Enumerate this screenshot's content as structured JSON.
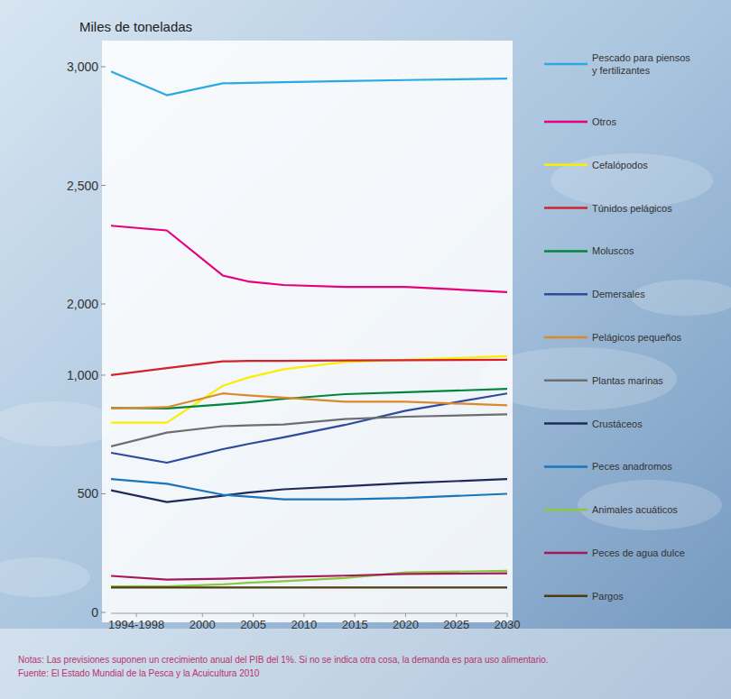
{
  "chart_data": {
    "type": "line",
    "y_label": "Miles de toneladas",
    "notes": "Notas: Las previsiones suponen un crecimiento anual del PIB del 1%. Si no se indica otra cosa, la demanda es para uso alimentario.",
    "source": "Fuente: El Estado Mundial de la Pesca y la Acuicultura 2010",
    "x": [
      1991,
      1996.5,
      2002,
      2004.5,
      2008,
      2014,
      2020,
      2030
    ],
    "xlim": [
      1991,
      2030
    ],
    "xticks": [
      {
        "value": 1993.5,
        "label": "1994-1998"
      },
      2000,
      2005,
      2010,
      2015,
      2020,
      2025,
      2030
    ],
    "ylim": [
      0,
      3000
    ],
    "yticks": [
      0,
      500,
      {
        "value": 1000,
        "label": "1,000"
      },
      {
        "value": 2000,
        "label": "2,000"
      },
      {
        "value": 2500,
        "label": "2,500"
      },
      {
        "value": 3000,
        "label": "3,000"
      }
    ],
    "grid": false,
    "legend": "right",
    "series": [
      {
        "name": "Pescado para piensos\ny fertilizantes",
        "color": "#29aae1",
        "values": [
          2980,
          2880,
          2930,
          2932,
          2935,
          2940,
          2944,
          2950
        ]
      },
      {
        "name": "Otros",
        "color": "#e6007e",
        "values": [
          2330,
          2310,
          2120,
          2095,
          2080,
          2072,
          2072,
          2050
        ]
      },
      {
        "name": "Cefalópodos",
        "color": "#ffed00",
        "values": [
          800,
          800,
          955,
          990,
          1025,
          1055,
          1065,
          1080
        ]
      },
      {
        "name": "Túnidos pelágicos",
        "color": "#d2232a",
        "values": [
          1000,
          1030,
          1058,
          1060,
          1060,
          1062,
          1063,
          1065
        ]
      },
      {
        "name": "Moluscos",
        "color": "#00873c",
        "values": [
          862,
          860,
          877,
          885,
          900,
          920,
          928,
          942
        ]
      },
      {
        "name": "Demersales",
        "color": "#2e4a9e",
        "values": [
          673,
          631,
          688,
          710,
          738,
          790,
          850,
          923
        ]
      },
      {
        "name": "Pelágicos pequeños",
        "color": "#d98a2b",
        "values": [
          860,
          865,
          923,
          915,
          905,
          888,
          888,
          873
        ]
      },
      {
        "name": "Plantas marinas",
        "color": "#6d6e70",
        "values": [
          700,
          758,
          785,
          788,
          792,
          815,
          825,
          835
        ]
      },
      {
        "name": "Crustáceos",
        "color": "#1f2a5c",
        "values": [
          515,
          465,
          492,
          505,
          519,
          532,
          545,
          562
        ]
      },
      {
        "name": "Peces anadromos",
        "color": "#1b75bb",
        "values": [
          562,
          542,
          496,
          488,
          477,
          477,
          482,
          500
        ]
      },
      {
        "name": "Animales acuáticos",
        "color": "#8dc63f",
        "values": [
          110,
          110,
          118,
          125,
          132,
          145,
          169,
          175
        ]
      },
      {
        "name": "Peces de agua dulce",
        "color": "#a3195b",
        "values": [
          154,
          138,
          142,
          145,
          150,
          155,
          162,
          165
        ]
      },
      {
        "name": "Pargos",
        "color": "#4d3b12",
        "values": [
          105,
          105,
          105,
          105,
          105,
          105,
          105,
          105
        ]
      }
    ]
  }
}
